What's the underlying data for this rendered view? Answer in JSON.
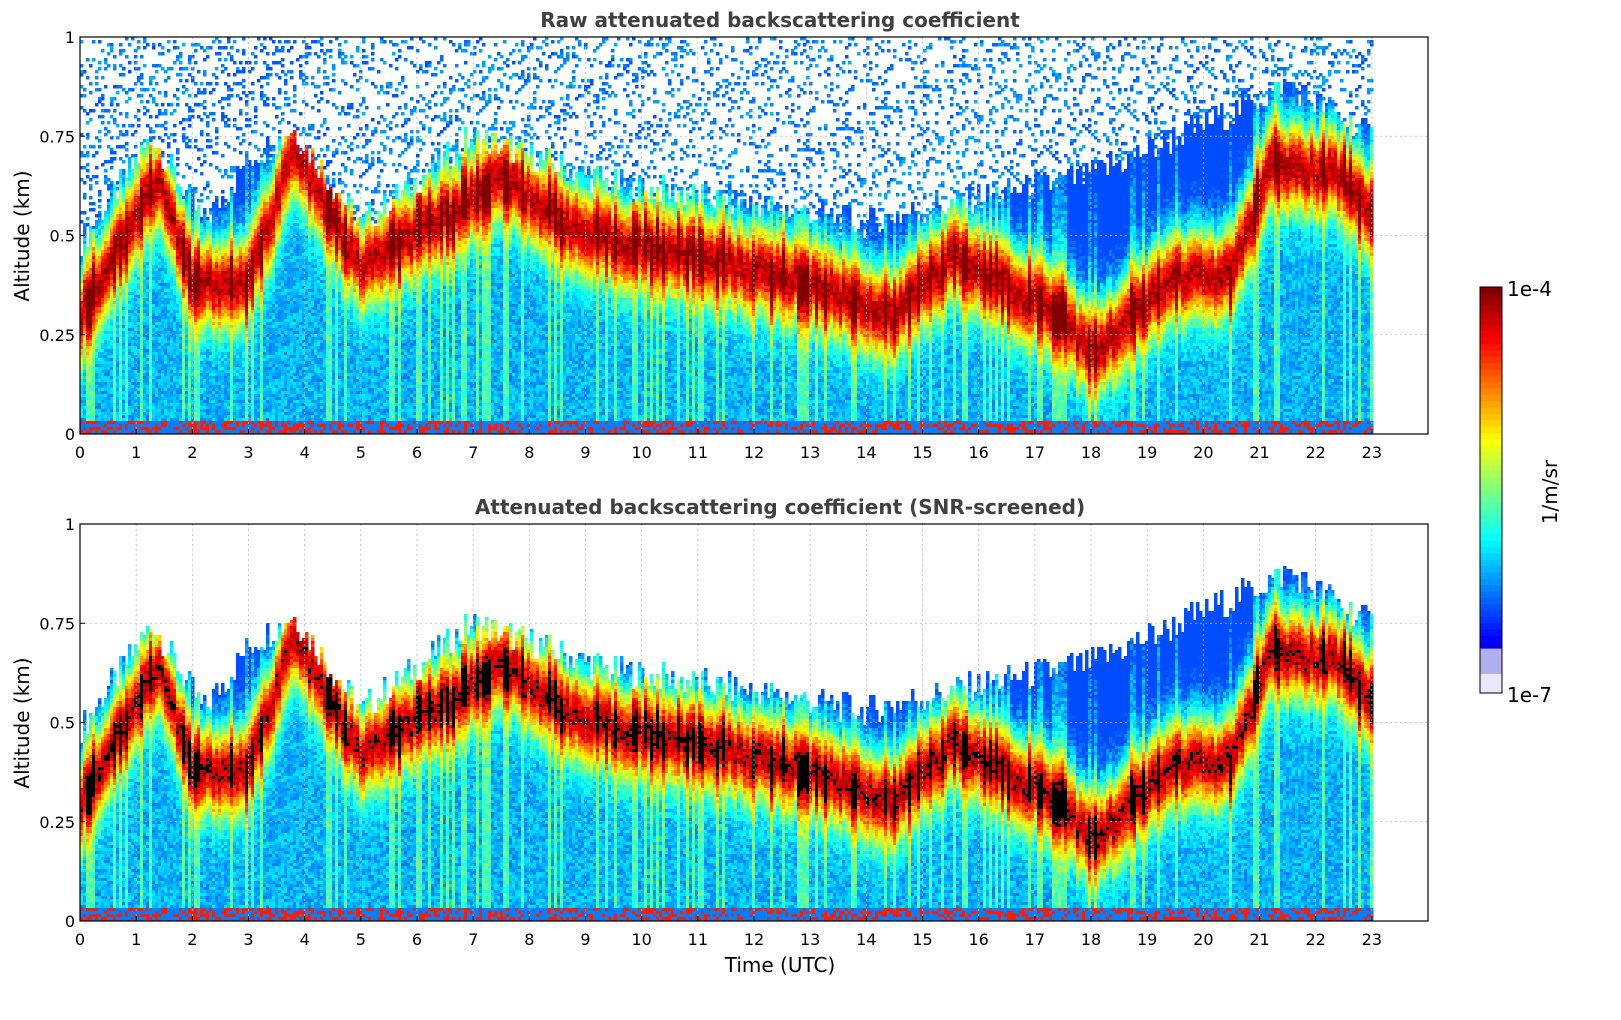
{
  "chart_data": [
    {
      "type": "heatmap",
      "title": "Raw attenuated backscattering coefficient",
      "xlabel": "",
      "ylabel": "Altitude (km)",
      "xlim": [
        0,
        24
      ],
      "ylim": [
        0,
        1
      ],
      "x_ticks": [
        "0",
        "1",
        "2",
        "3",
        "4",
        "5",
        "6",
        "7",
        "8",
        "9",
        "10",
        "11",
        "12",
        "13",
        "14",
        "15",
        "16",
        "17",
        "18",
        "19",
        "20",
        "21",
        "22",
        "23"
      ],
      "y_ticks": [
        "0",
        "0.25",
        "0.5",
        "0.75",
        "1"
      ],
      "grid": true,
      "screened": false,
      "layer_top_km": [
        [
          0.0,
          0.45
        ],
        [
          1.3,
          0.72
        ],
        [
          2.2,
          0.5
        ],
        [
          3.0,
          0.66
        ],
        [
          3.8,
          0.74
        ],
        [
          5.0,
          0.5
        ],
        [
          7.0,
          0.72
        ],
        [
          9.5,
          0.6
        ],
        [
          12.0,
          0.55
        ],
        [
          14.0,
          0.5
        ],
        [
          15.5,
          0.55
        ],
        [
          18.0,
          0.62
        ],
        [
          20.5,
          0.78
        ],
        [
          21.5,
          0.85
        ],
        [
          23.0,
          0.72
        ]
      ],
      "layer_peak_km": [
        [
          0.0,
          0.3
        ],
        [
          1.4,
          0.65
        ],
        [
          2.0,
          0.38
        ],
        [
          3.0,
          0.38
        ],
        [
          3.8,
          0.72
        ],
        [
          5.0,
          0.42
        ],
        [
          6.5,
          0.55
        ],
        [
          7.5,
          0.65
        ],
        [
          9.0,
          0.5
        ],
        [
          11.0,
          0.45
        ],
        [
          13.0,
          0.38
        ],
        [
          14.5,
          0.3
        ],
        [
          15.5,
          0.45
        ],
        [
          17.5,
          0.3
        ],
        [
          18.0,
          0.2
        ],
        [
          19.5,
          0.4
        ],
        [
          20.5,
          0.4
        ],
        [
          21.2,
          0.68
        ],
        [
          22.5,
          0.65
        ],
        [
          23.0,
          0.55
        ]
      ]
    },
    {
      "type": "heatmap",
      "title": "Attenuated backscattering coefficient (SNR-screened)",
      "xlabel": "Time (UTC)",
      "ylabel": "Altitude (km)",
      "xlim": [
        0,
        24
      ],
      "ylim": [
        0,
        1
      ],
      "x_ticks": [
        "0",
        "1",
        "2",
        "3",
        "4",
        "5",
        "6",
        "7",
        "8",
        "9",
        "10",
        "11",
        "12",
        "13",
        "14",
        "15",
        "16",
        "17",
        "18",
        "19",
        "20",
        "21",
        "22",
        "23"
      ],
      "y_ticks": [
        "0",
        "0.25",
        "0.5",
        "0.75",
        "1"
      ],
      "grid": true,
      "screened": true,
      "layer_top_km": [
        [
          0.0,
          0.45
        ],
        [
          1.3,
          0.72
        ],
        [
          2.2,
          0.5
        ],
        [
          3.0,
          0.66
        ],
        [
          3.8,
          0.74
        ],
        [
          5.0,
          0.5
        ],
        [
          7.0,
          0.72
        ],
        [
          9.5,
          0.6
        ],
        [
          12.0,
          0.55
        ],
        [
          14.0,
          0.5
        ],
        [
          15.5,
          0.55
        ],
        [
          18.0,
          0.62
        ],
        [
          20.5,
          0.78
        ],
        [
          21.5,
          0.85
        ],
        [
          23.0,
          0.72
        ]
      ],
      "layer_peak_km": [
        [
          0.0,
          0.3
        ],
        [
          1.4,
          0.65
        ],
        [
          2.0,
          0.38
        ],
        [
          3.0,
          0.38
        ],
        [
          3.8,
          0.72
        ],
        [
          5.0,
          0.42
        ],
        [
          6.5,
          0.55
        ],
        [
          7.5,
          0.65
        ],
        [
          9.0,
          0.5
        ],
        [
          11.0,
          0.45
        ],
        [
          13.0,
          0.38
        ],
        [
          14.5,
          0.3
        ],
        [
          15.5,
          0.45
        ],
        [
          17.5,
          0.3
        ],
        [
          18.0,
          0.2
        ],
        [
          19.5,
          0.4
        ],
        [
          20.5,
          0.4
        ],
        [
          21.2,
          0.68
        ],
        [
          22.5,
          0.65
        ],
        [
          23.0,
          0.55
        ]
      ]
    }
  ],
  "colorbar": {
    "max_label": "1e-4",
    "min_label": "1e-7",
    "unit": "1/m/sr",
    "colormap": "jet",
    "scale": "log"
  }
}
